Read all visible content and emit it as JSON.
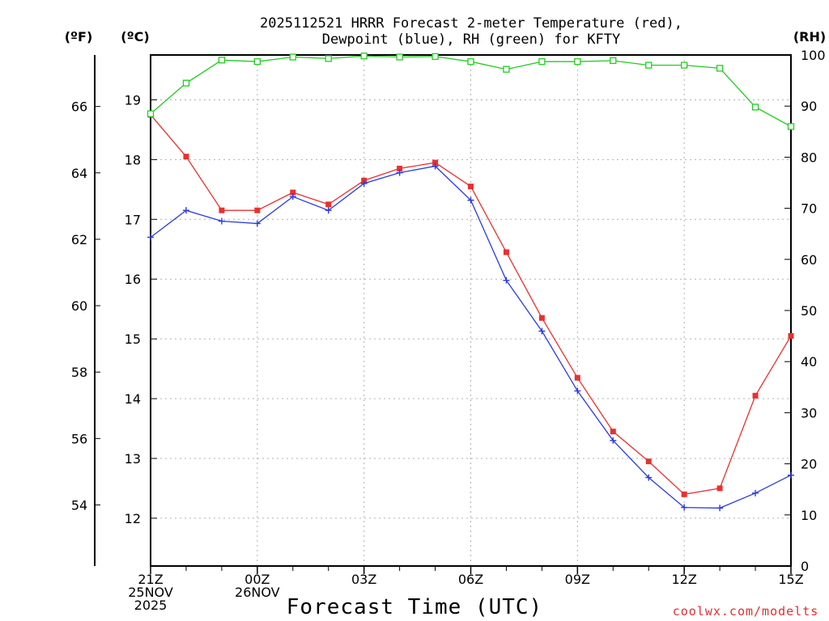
{
  "chart_data": {
    "type": "line",
    "title_lines": [
      "2025112521 HRRR Forecast 2-meter Temperature (red),",
      "Dewpoint (blue), RH (green) for KFTY"
    ],
    "xlabel": "Forecast Time (UTC)",
    "credit": "coolwx.com/modelts",
    "unit_labels": {
      "fahrenheit": "(ºF)",
      "celsius": "(ºC)",
      "rh": "(RH)"
    },
    "x_hours": [
      0,
      1,
      2,
      3,
      4,
      5,
      6,
      7,
      8,
      9,
      10,
      11,
      12,
      13,
      14,
      15,
      16,
      17,
      18
    ],
    "x_ticks": [
      {
        "hour": 0,
        "lines": [
          "21Z",
          "25NOV",
          "2025"
        ]
      },
      {
        "hour": 3,
        "lines": [
          "00Z",
          "26NOV"
        ]
      },
      {
        "hour": 6,
        "lines": [
          "03Z"
        ]
      },
      {
        "hour": 9,
        "lines": [
          "06Z"
        ]
      },
      {
        "hour": 12,
        "lines": [
          "09Z"
        ]
      },
      {
        "hour": 15,
        "lines": [
          "12Z"
        ]
      },
      {
        "hour": 18,
        "lines": [
          "15Z"
        ]
      }
    ],
    "celsius_ticks": [
      12,
      13,
      14,
      15,
      16,
      17,
      18,
      19
    ],
    "fahrenheit_ticks": [
      54,
      56,
      58,
      60,
      62,
      64,
      66
    ],
    "rh_ticks": [
      0,
      10,
      20,
      30,
      40,
      50,
      60,
      70,
      80,
      90,
      100
    ],
    "ylim_celsius": [
      11.2,
      19.75
    ],
    "ylim_rh": [
      0,
      100
    ],
    "series": [
      {
        "name": "Temperature",
        "axis": "celsius",
        "color": "#e8312f",
        "marker": "filled-square",
        "values": [
          18.75,
          18.05,
          17.15,
          17.15,
          17.45,
          17.25,
          17.65,
          17.85,
          17.95,
          17.55,
          16.45,
          15.35,
          14.35,
          13.45,
          12.95,
          12.4,
          12.5,
          14.05,
          15.05
        ]
      },
      {
        "name": "Dewpoint",
        "axis": "celsius",
        "color": "#2b3bde",
        "marker": "plus",
        "values": [
          16.7,
          17.15,
          16.97,
          16.93,
          17.38,
          17.15,
          17.6,
          17.78,
          17.89,
          17.32,
          15.98,
          15.13,
          14.13,
          13.3,
          12.68,
          12.18,
          12.17,
          12.42,
          12.72
        ]
      },
      {
        "name": "RH",
        "axis": "rh",
        "color": "#22cc22",
        "marker": "open-square",
        "values": [
          88.5,
          94.5,
          99,
          98.7,
          99.6,
          99.3,
          99.8,
          99.6,
          99.7,
          98.7,
          97.2,
          98.7,
          98.7,
          98.9,
          98,
          98,
          97.4,
          89.8,
          86
        ]
      }
    ]
  }
}
